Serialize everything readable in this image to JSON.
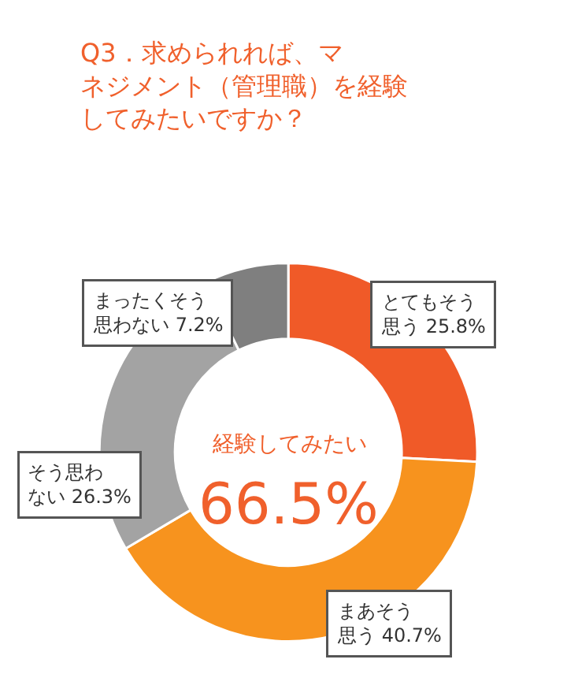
{
  "chart_data": {
    "type": "donut",
    "title": "Q3．求められれば、マネジメント（管理職）を経験してみたいですか？",
    "categories": [
      "とてもそう思う",
      "まあそう思う",
      "そう思わない",
      "まったくそう思わない"
    ],
    "values": [
      25.8,
      40.7,
      26.3,
      7.2
    ],
    "value_labels": [
      "25.8%",
      "40.7%",
      "26.3%",
      "7.2%"
    ],
    "colors": [
      "#f05a28",
      "#f7931e",
      "#a3a3a3",
      "#7f7f7f"
    ],
    "annotations": [
      "経験してみたい",
      "66.5%"
    ]
  }
}
